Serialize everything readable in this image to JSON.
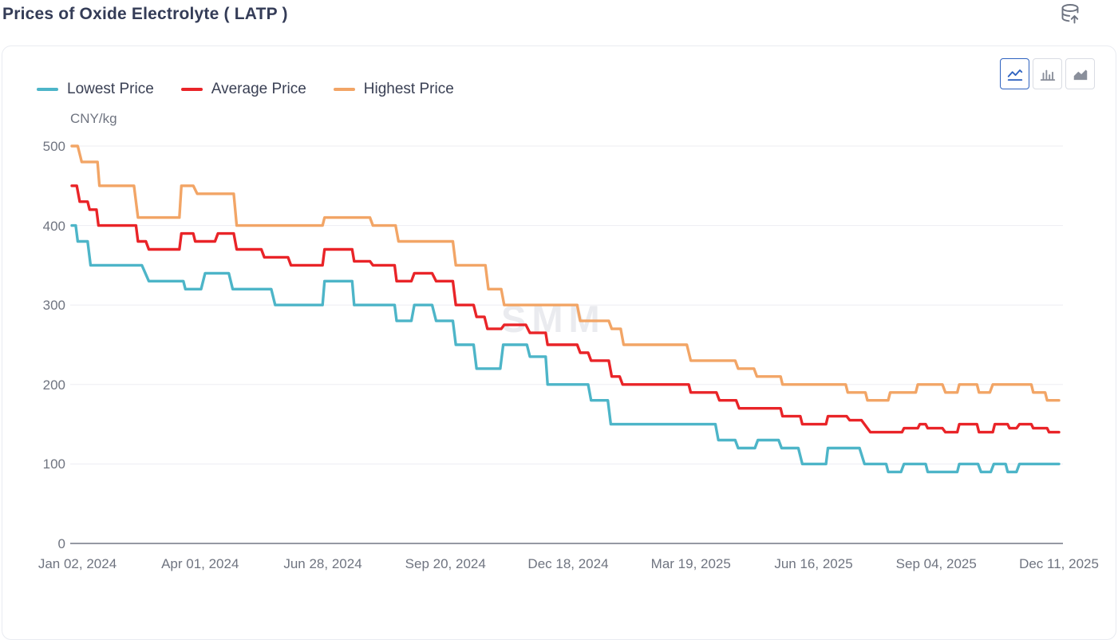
{
  "header": {
    "title": "Prices of Oxide Electrolyte ( LATP )"
  },
  "icons": {
    "export": "database-export-icon",
    "chart_type_line": "line-chart-icon",
    "chart_type_bar": "bar-chart-icon",
    "chart_type_area": "area-chart-icon"
  },
  "toolbar": {
    "chart_types": [
      {
        "name": "line",
        "active": true
      },
      {
        "name": "bar",
        "active": false
      },
      {
        "name": "area",
        "active": false
      }
    ]
  },
  "legend": [
    {
      "label": "Lowest Price",
      "color": "#4db5c8"
    },
    {
      "label": "Average Price",
      "color": "#e92428"
    },
    {
      "label": "Highest Price",
      "color": "#f2a566"
    }
  ],
  "colors": {
    "grid": "#ededf2",
    "axis": "#9599a3",
    "tick_text": "#6f7480"
  },
  "chart_data": {
    "type": "line",
    "step": true,
    "title": "Prices of Oxide Electrolyte ( LATP )",
    "ylabel": "CNY/kg",
    "unit_label": "CNY/kg",
    "watermark": "SMM",
    "grid": true,
    "legend_position": "top-left",
    "y_axis": {
      "min": 0,
      "max": 500,
      "ticks": [
        0,
        100,
        200,
        300,
        400,
        500
      ]
    },
    "x_axis": {
      "start": "Jan 02, 2024",
      "end": "Dec 11, 2025",
      "ticks": [
        "Jan 02, 2024",
        "Apr 01, 2024",
        "Jun 28, 2024",
        "Sep 20, 2024",
        "Dec 18, 2024",
        "Mar 19, 2025",
        "Jun 16, 2025",
        "Sep 04, 2025",
        "Dec 11, 2025"
      ]
    },
    "series_note": "plateaus are [x_start_fraction, x_end_fraction, value_CNY_per_kg] along the Jan-02-2024..Dec-11-2025 axis; values estimated from gridlines",
    "series": [
      {
        "name": "Lowest Price",
        "color": "#4db5c8",
        "plateaus": [
          [
            0.0,
            0.004,
            400
          ],
          [
            0.006,
            0.016,
            380
          ],
          [
            0.019,
            0.071,
            350
          ],
          [
            0.078,
            0.113,
            330
          ],
          [
            0.115,
            0.131,
            320
          ],
          [
            0.135,
            0.159,
            340
          ],
          [
            0.163,
            0.202,
            320
          ],
          [
            0.206,
            0.254,
            300
          ],
          [
            0.256,
            0.284,
            330
          ],
          [
            0.286,
            0.327,
            300
          ],
          [
            0.329,
            0.344,
            280
          ],
          [
            0.347,
            0.365,
            300
          ],
          [
            0.369,
            0.386,
            280
          ],
          [
            0.389,
            0.407,
            250
          ],
          [
            0.41,
            0.434,
            220
          ],
          [
            0.437,
            0.461,
            250
          ],
          [
            0.464,
            0.48,
            235
          ],
          [
            0.482,
            0.523,
            200
          ],
          [
            0.526,
            0.543,
            180
          ],
          [
            0.546,
            0.652,
            150
          ],
          [
            0.655,
            0.672,
            130
          ],
          [
            0.675,
            0.692,
            120
          ],
          [
            0.695,
            0.716,
            130
          ],
          [
            0.719,
            0.736,
            120
          ],
          [
            0.74,
            0.764,
            100
          ],
          [
            0.766,
            0.798,
            120
          ],
          [
            0.803,
            0.825,
            100
          ],
          [
            0.827,
            0.84,
            90
          ],
          [
            0.843,
            0.865,
            100
          ],
          [
            0.867,
            0.897,
            90
          ],
          [
            0.899,
            0.918,
            100
          ],
          [
            0.921,
            0.931,
            90
          ],
          [
            0.934,
            0.946,
            100
          ],
          [
            0.948,
            0.957,
            90
          ],
          [
            0.96,
            1.0,
            100
          ]
        ]
      },
      {
        "name": "Average Price",
        "color": "#e92428",
        "plateaus": [
          [
            0.0,
            0.005,
            450
          ],
          [
            0.008,
            0.016,
            430
          ],
          [
            0.018,
            0.025,
            420
          ],
          [
            0.027,
            0.065,
            400
          ],
          [
            0.067,
            0.075,
            380
          ],
          [
            0.078,
            0.109,
            370
          ],
          [
            0.111,
            0.123,
            390
          ],
          [
            0.125,
            0.145,
            380
          ],
          [
            0.148,
            0.164,
            390
          ],
          [
            0.167,
            0.192,
            370
          ],
          [
            0.195,
            0.219,
            360
          ],
          [
            0.222,
            0.254,
            350
          ],
          [
            0.256,
            0.284,
            370
          ],
          [
            0.286,
            0.302,
            355
          ],
          [
            0.305,
            0.327,
            350
          ],
          [
            0.329,
            0.344,
            330
          ],
          [
            0.347,
            0.365,
            340
          ],
          [
            0.369,
            0.386,
            330
          ],
          [
            0.389,
            0.407,
            300
          ],
          [
            0.41,
            0.418,
            285
          ],
          [
            0.421,
            0.435,
            270
          ],
          [
            0.438,
            0.46,
            275
          ],
          [
            0.464,
            0.48,
            265
          ],
          [
            0.482,
            0.512,
            250
          ],
          [
            0.515,
            0.523,
            240
          ],
          [
            0.526,
            0.544,
            230
          ],
          [
            0.547,
            0.555,
            210
          ],
          [
            0.558,
            0.625,
            200
          ],
          [
            0.627,
            0.653,
            190
          ],
          [
            0.656,
            0.673,
            180
          ],
          [
            0.676,
            0.718,
            170
          ],
          [
            0.72,
            0.738,
            160
          ],
          [
            0.74,
            0.764,
            150
          ],
          [
            0.766,
            0.785,
            160
          ],
          [
            0.788,
            0.8,
            155
          ],
          [
            0.809,
            0.841,
            140
          ],
          [
            0.843,
            0.857,
            145
          ],
          [
            0.859,
            0.865,
            150
          ],
          [
            0.867,
            0.882,
            145
          ],
          [
            0.885,
            0.897,
            140
          ],
          [
            0.899,
            0.917,
            150
          ],
          [
            0.919,
            0.933,
            140
          ],
          [
            0.935,
            0.948,
            150
          ],
          [
            0.95,
            0.957,
            145
          ],
          [
            0.96,
            0.972,
            150
          ],
          [
            0.974,
            0.988,
            145
          ],
          [
            0.99,
            1.0,
            140
          ]
        ]
      },
      {
        "name": "Highest Price",
        "color": "#f2a566",
        "plateaus": [
          [
            0.0,
            0.006,
            500
          ],
          [
            0.01,
            0.026,
            480
          ],
          [
            0.028,
            0.063,
            450
          ],
          [
            0.067,
            0.109,
            410
          ],
          [
            0.111,
            0.123,
            450
          ],
          [
            0.127,
            0.164,
            440
          ],
          [
            0.167,
            0.254,
            400
          ],
          [
            0.256,
            0.302,
            410
          ],
          [
            0.305,
            0.328,
            400
          ],
          [
            0.331,
            0.386,
            380
          ],
          [
            0.389,
            0.419,
            350
          ],
          [
            0.422,
            0.435,
            320
          ],
          [
            0.438,
            0.512,
            300
          ],
          [
            0.515,
            0.544,
            280
          ],
          [
            0.547,
            0.556,
            270
          ],
          [
            0.559,
            0.623,
            250
          ],
          [
            0.627,
            0.672,
            230
          ],
          [
            0.675,
            0.691,
            220
          ],
          [
            0.694,
            0.718,
            210
          ],
          [
            0.72,
            0.784,
            200
          ],
          [
            0.786,
            0.804,
            190
          ],
          [
            0.806,
            0.827,
            180
          ],
          [
            0.829,
            0.855,
            190
          ],
          [
            0.857,
            0.882,
            200
          ],
          [
            0.885,
            0.897,
            190
          ],
          [
            0.899,
            0.917,
            200
          ],
          [
            0.919,
            0.93,
            190
          ],
          [
            0.933,
            0.972,
            200
          ],
          [
            0.974,
            0.986,
            190
          ],
          [
            0.988,
            1.0,
            180
          ]
        ]
      }
    ]
  }
}
